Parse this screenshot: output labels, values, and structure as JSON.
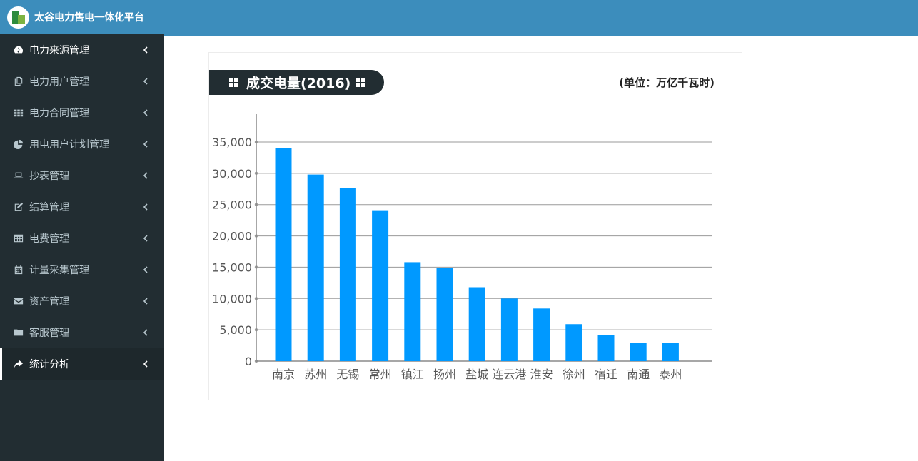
{
  "app": {
    "title": "太谷电力售电一体化平台"
  },
  "sidebar": {
    "items": [
      {
        "label": "电力来源管理",
        "icon": "dashboard-icon"
      },
      {
        "label": "电力用户管理",
        "icon": "copy-icon"
      },
      {
        "label": "电力合同管理",
        "icon": "grid-icon"
      },
      {
        "label": "用电用户计划管理",
        "icon": "pie-chart-icon"
      },
      {
        "label": "抄表管理",
        "icon": "laptop-icon"
      },
      {
        "label": "结算管理",
        "icon": "edit-icon"
      },
      {
        "label": "电费管理",
        "icon": "table-icon"
      },
      {
        "label": "计量采集管理",
        "icon": "calendar-icon"
      },
      {
        "label": "资产管理",
        "icon": "envelope-icon"
      },
      {
        "label": "客服管理",
        "icon": "folder-icon"
      },
      {
        "label": "统计分析",
        "icon": "share-icon"
      }
    ]
  },
  "panel": {
    "title": "成交电量(2016)",
    "unit": "(单位：万亿千瓦时)"
  },
  "colors": {
    "bar": "#0099ff",
    "header": "#3c8dbc",
    "sidebar": "#222d32"
  },
  "chart_data": {
    "type": "bar",
    "categories": [
      "南京",
      "苏州",
      "无锡",
      "常州",
      "镇江",
      "扬州",
      "盐城",
      "连云港",
      "淮安",
      "徐州",
      "宿迁",
      "南通",
      "泰州"
    ],
    "values": [
      34000,
      29800,
      27700,
      24100,
      15800,
      14900,
      11800,
      10000,
      8400,
      5900,
      4200,
      2900,
      2900
    ],
    "ylim": [
      0,
      35000
    ],
    "yticks": [
      "0",
      "5,000",
      "10,000",
      "15,000",
      "20,000",
      "25,000",
      "30,000",
      "35,000"
    ],
    "grid": true,
    "legend": "none"
  }
}
